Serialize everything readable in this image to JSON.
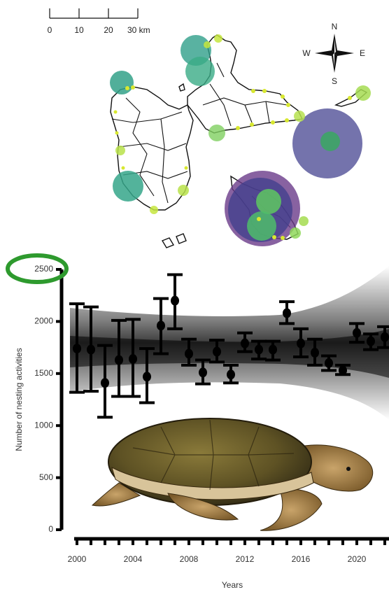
{
  "map": {
    "scale_labels": [
      "0",
      "10",
      "20",
      "30 km"
    ],
    "compass": {
      "north": "N",
      "south": "S",
      "east": "E",
      "west": "W"
    }
  },
  "chart_data": {
    "type": "errorbar",
    "xlabel": "Years",
    "ylabel": "Number of nesting activities",
    "x": [
      2000,
      2001,
      2002,
      2003,
      2004,
      2005,
      2006,
      2007,
      2008,
      2009,
      2010,
      2011,
      2012,
      2013,
      2014,
      2015,
      2016,
      2017,
      2018,
      2019,
      2020,
      2021,
      2022
    ],
    "values": [
      1740,
      1730,
      1410,
      1630,
      1640,
      1470,
      1960,
      2200,
      1690,
      1510,
      1710,
      1490,
      1790,
      1730,
      1730,
      2080,
      1790,
      1700,
      1600,
      1530,
      1890,
      1810,
      1850
    ],
    "lower": [
      1320,
      1330,
      1080,
      1280,
      1280,
      1220,
      1690,
      1930,
      1580,
      1400,
      1610,
      1410,
      1710,
      1640,
      1630,
      1980,
      1660,
      1580,
      1530,
      1490,
      1800,
      1730,
      1750
    ],
    "upper": [
      2170,
      2140,
      1770,
      2010,
      2020,
      1740,
      2220,
      2450,
      1830,
      1630,
      1820,
      1580,
      1890,
      1810,
      1810,
      2190,
      1930,
      1830,
      1670,
      1580,
      1980,
      1880,
      1950
    ],
    "color": "#000000",
    "xlim": [
      1999,
      2022.3
    ],
    "ylim": [
      0,
      2500
    ],
    "xticks": [
      2000,
      2004,
      2008,
      2012,
      2016,
      2020
    ],
    "yticks": [
      0,
      500,
      1000,
      1500,
      2000,
      2500
    ]
  }
}
